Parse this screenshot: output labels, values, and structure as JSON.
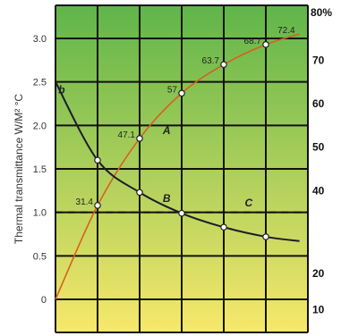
{
  "chart_data": {
    "type": "line",
    "ylabel": "Thermal transmittance W/M² °C",
    "left_axis": {
      "range": [
        -0.38,
        3.38
      ],
      "ticks": [
        0,
        0.5,
        1.0,
        1.5,
        2.0,
        2.5,
        3.0
      ],
      "tick_labels": [
        "0",
        "0.5",
        "1.0",
        "1.5",
        "2.0",
        "2.5",
        "3.0"
      ]
    },
    "right_axis": {
      "ticks": [
        10,
        20,
        40,
        50,
        60,
        70
      ],
      "tick_labels": [
        "10",
        "20",
        "40",
        "50",
        "60",
        "70",
        "80%"
      ],
      "top_label": "80%",
      "positions_left_units": [
        -0.12,
        0.3,
        1.25,
        1.75,
        2.25,
        2.75
      ],
      "top_position_left_units": 3.3
    },
    "grid": true,
    "x_divisions": 6,
    "series": [
      {
        "name": "A",
        "color": "#d8601e",
        "x": [
          0.0,
          1.0,
          2.0,
          3.0,
          4.0,
          5.0,
          5.8
        ],
        "y": [
          0.0,
          1.08,
          1.85,
          2.37,
          2.7,
          2.93,
          3.05
        ],
        "point_labels": [
          "",
          "31.4",
          "47.1",
          "57",
          "63.7",
          "68.7",
          "72.4"
        ],
        "markers": [
          false,
          true,
          true,
          true,
          true,
          true,
          false
        ]
      },
      {
        "name": "b",
        "color": "#1c1c2a",
        "x": [
          0.0,
          1.0,
          2.0,
          3.0,
          4.0,
          5.0,
          5.8
        ],
        "y": [
          2.5,
          1.6,
          1.23,
          0.99,
          0.83,
          0.72,
          0.67
        ],
        "markers": [
          false,
          true,
          true,
          true,
          true,
          true,
          false
        ]
      }
    ],
    "reference_lines": [
      {
        "name": "C",
        "y": 1.0,
        "style": "dashed"
      }
    ],
    "curve_labels": [
      {
        "text": "b",
        "x": 0.07,
        "y": 2.37
      },
      {
        "text": "A",
        "x": 2.55,
        "y": 1.9
      },
      {
        "text": "B",
        "x": 2.55,
        "y": 1.12
      },
      {
        "text": "C",
        "x": 4.5,
        "y": 1.07
      }
    ],
    "colors": {
      "gradient_top": "#5fb54a",
      "gradient_bottom": "#f7e86b",
      "grid": "#111111"
    }
  }
}
